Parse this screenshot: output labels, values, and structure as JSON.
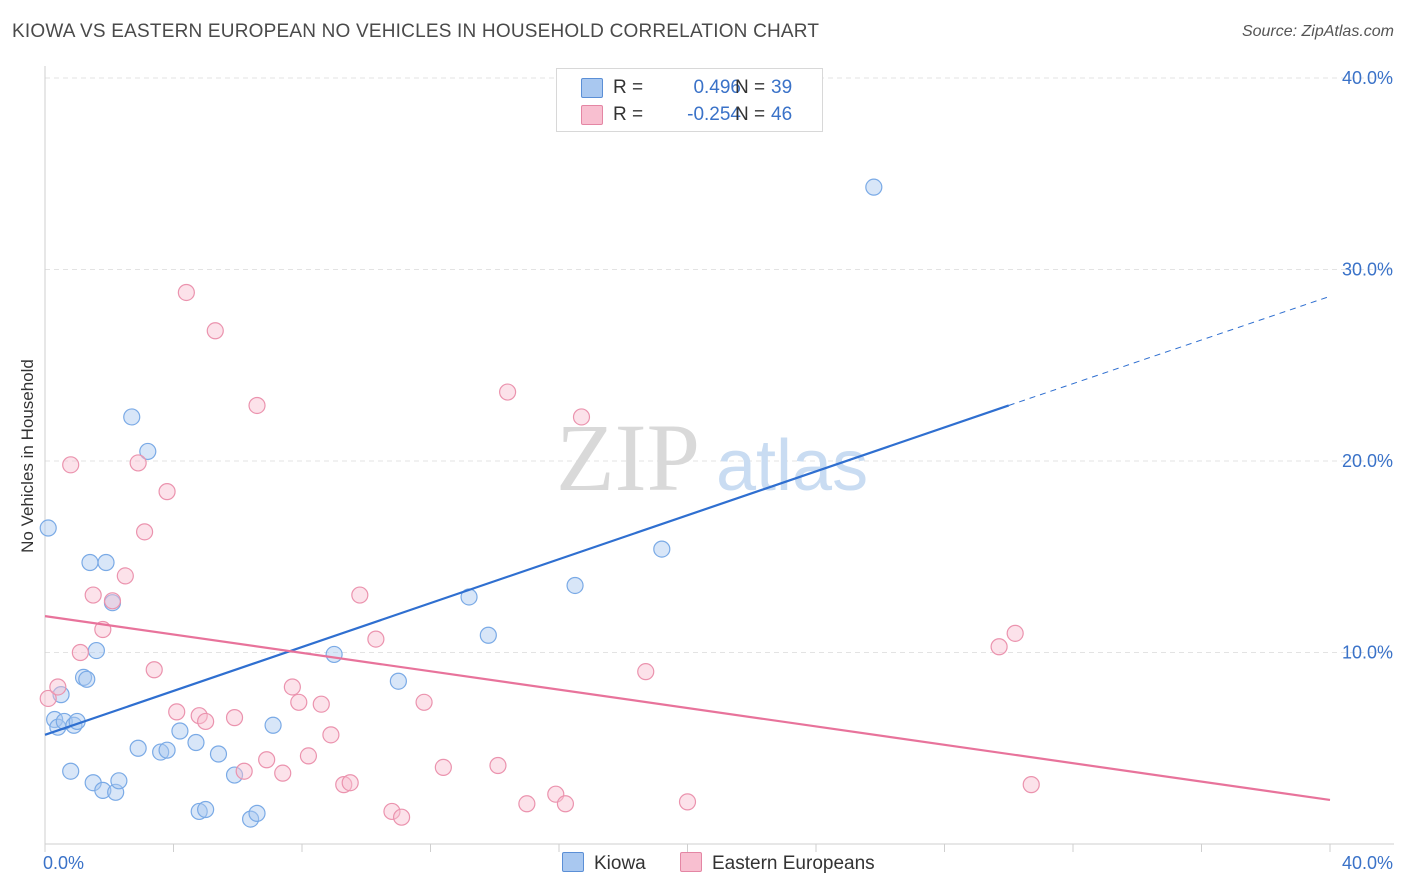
{
  "title": "KIOWA VS EASTERN EUROPEAN NO VEHICLES IN HOUSEHOLD CORRELATION CHART",
  "source": "Source: ZipAtlas.com",
  "watermark": {
    "zip": "ZIP",
    "atlas": "atlas"
  },
  "legend": {
    "rows": [
      {
        "r_label": "R =",
        "r_value": "0.496",
        "n_label": "N =",
        "n_value": "39",
        "color": "#a9c8f0",
        "border": "#5b8fd6"
      },
      {
        "r_label": "R =",
        "r_value": "-0.254",
        "n_label": "N =",
        "n_value": "46",
        "color": "#f8bfd0",
        "border": "#e486a4"
      }
    ]
  },
  "bottom_legend": {
    "kiowa": "Kiowa",
    "eastern": "Eastern Europeans"
  },
  "chart_data": {
    "type": "scatter",
    "title": "KIOWA VS EASTERN EUROPEAN NO VEHICLES IN HOUSEHOLD CORRELATION CHART",
    "xlabel": "",
    "ylabel": "No Vehicles in Household",
    "xlim": [
      0,
      40
    ],
    "ylim": [
      0,
      40
    ],
    "x_tick_labels": [
      "0.0%",
      "40.0%"
    ],
    "y_tick_labels": [
      "10.0%",
      "20.0%",
      "30.0%",
      "40.0%"
    ],
    "y_ticks": [
      10,
      20,
      30,
      40
    ],
    "grid": true,
    "legend_position": "bottom",
    "series": [
      {
        "name": "Kiowa",
        "color": "#7aaae6",
        "fill": "rgba(168,200,240,0.45)",
        "trend_color": "#2f6fd0",
        "points": [
          [
            0.1,
            16.5
          ],
          [
            0.3,
            6.5
          ],
          [
            0.4,
            6.1
          ],
          [
            0.5,
            7.8
          ],
          [
            0.6,
            6.4
          ],
          [
            0.8,
            3.8
          ],
          [
            0.9,
            6.2
          ],
          [
            1.0,
            6.4
          ],
          [
            1.2,
            8.7
          ],
          [
            1.3,
            8.6
          ],
          [
            1.4,
            14.7
          ],
          [
            1.5,
            3.2
          ],
          [
            1.6,
            10.1
          ],
          [
            1.8,
            2.8
          ],
          [
            1.9,
            14.7
          ],
          [
            2.1,
            12.6
          ],
          [
            2.2,
            2.7
          ],
          [
            2.3,
            3.3
          ],
          [
            2.7,
            22.3
          ],
          [
            2.9,
            5.0
          ],
          [
            3.2,
            20.5
          ],
          [
            3.6,
            4.8
          ],
          [
            3.8,
            4.9
          ],
          [
            4.2,
            5.9
          ],
          [
            4.7,
            5.3
          ],
          [
            4.8,
            1.7
          ],
          [
            5.0,
            1.8
          ],
          [
            5.4,
            4.7
          ],
          [
            5.9,
            3.6
          ],
          [
            6.4,
            1.3
          ],
          [
            6.6,
            1.6
          ],
          [
            7.1,
            6.2
          ],
          [
            9.0,
            9.9
          ],
          [
            11.0,
            8.5
          ],
          [
            13.2,
            12.9
          ],
          [
            13.8,
            10.9
          ],
          [
            16.5,
            13.5
          ],
          [
            19.2,
            15.4
          ],
          [
            25.8,
            34.3
          ]
        ],
        "trend": {
          "x_start": 0,
          "y_start": 5.7,
          "x_solid_end": 30.0,
          "y_solid_end": 22.9,
          "x_end": 40,
          "y_end": 28.6
        }
      },
      {
        "name": "Eastern Europeans",
        "color": "#eb93ae",
        "fill": "rgba(248,191,208,0.45)",
        "trend_color": "#e8739b",
        "points": [
          [
            0.1,
            7.6
          ],
          [
            0.4,
            8.2
          ],
          [
            0.8,
            19.8
          ],
          [
            1.1,
            10.0
          ],
          [
            1.5,
            13.0
          ],
          [
            1.8,
            11.2
          ],
          [
            2.1,
            12.7
          ],
          [
            2.5,
            14.0
          ],
          [
            2.9,
            19.9
          ],
          [
            3.1,
            16.3
          ],
          [
            3.4,
            9.1
          ],
          [
            3.8,
            18.4
          ],
          [
            4.1,
            6.9
          ],
          [
            4.4,
            28.8
          ],
          [
            4.8,
            6.7
          ],
          [
            5.0,
            6.4
          ],
          [
            5.3,
            26.8
          ],
          [
            5.9,
            6.6
          ],
          [
            6.2,
            3.8
          ],
          [
            6.6,
            22.9
          ],
          [
            6.9,
            4.4
          ],
          [
            7.4,
            3.7
          ],
          [
            7.7,
            8.2
          ],
          [
            7.9,
            7.4
          ],
          [
            8.2,
            4.6
          ],
          [
            8.6,
            7.3
          ],
          [
            8.9,
            5.7
          ],
          [
            9.3,
            3.1
          ],
          [
            9.5,
            3.2
          ],
          [
            9.8,
            13.0
          ],
          [
            10.3,
            10.7
          ],
          [
            10.8,
            1.7
          ],
          [
            11.1,
            1.4
          ],
          [
            11.8,
            7.4
          ],
          [
            12.4,
            4.0
          ],
          [
            14.1,
            4.1
          ],
          [
            14.4,
            23.6
          ],
          [
            15.0,
            2.1
          ],
          [
            15.9,
            2.6
          ],
          [
            16.2,
            2.1
          ],
          [
            16.7,
            22.3
          ],
          [
            18.7,
            9.0
          ],
          [
            20.0,
            2.2
          ],
          [
            29.7,
            10.3
          ],
          [
            30.2,
            11.0
          ],
          [
            30.7,
            3.1
          ]
        ],
        "trend": {
          "x_start": 0,
          "y_start": 11.9,
          "x_end": 40,
          "y_end": 2.3
        }
      }
    ]
  }
}
